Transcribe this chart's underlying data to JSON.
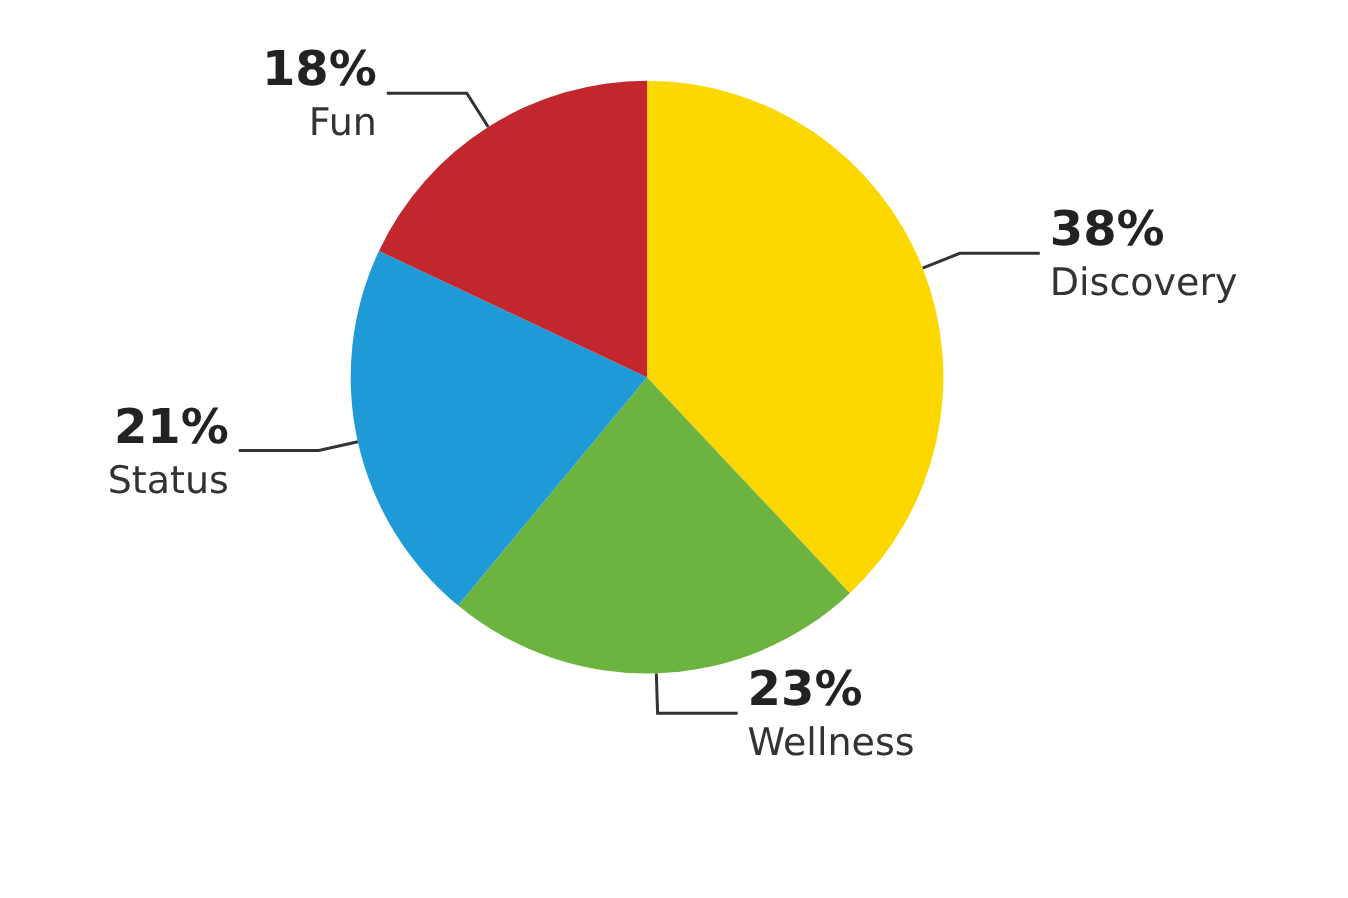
{
  "chart_data": {
    "type": "pie",
    "categories": [
      "Discovery",
      "Wellness",
      "Status",
      "Fun"
    ],
    "values": [
      38,
      23,
      21,
      18
    ],
    "value_labels": [
      "38%",
      "23%",
      "21%",
      "18%"
    ],
    "colors": [
      "#fcd800",
      "#6db33f",
      "#1e9ad6",
      "#c1272d"
    ]
  }
}
